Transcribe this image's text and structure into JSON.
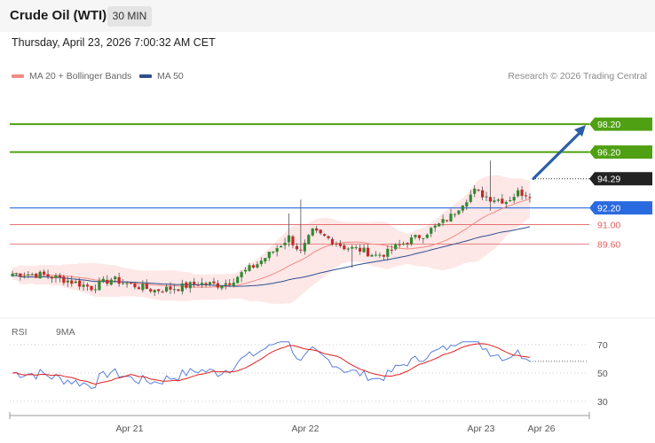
{
  "header": {
    "title": "Crude Oil (WTI)",
    "timeframe": "30 MIN",
    "timestamp": "Thursday, April 23, 2026 7:00:32 AM CET"
  },
  "legend": {
    "ma20_label": "MA 20 + Bollinger Bands",
    "ma50_label": "MA 50",
    "credit": "Research © 2026 Trading Central",
    "colors": {
      "ma20": "#f28b82",
      "ma50": "#2f4f8f",
      "band": "#fde3e3"
    }
  },
  "rsi_legend": {
    "rsi_label": "RSI",
    "ma9_label": "9MA",
    "colors": {
      "rsi": "#5b7fdc",
      "ma9": "#e02020"
    }
  },
  "chart_data": [
    {
      "type": "candlestick",
      "title": "",
      "ylim": [
        84.5,
        101.0
      ],
      "x_tick_labels": [
        "Apr 21",
        "Apr 22",
        "Apr 23",
        "Apr 26"
      ],
      "grid": false,
      "candles_count": 132,
      "levels": [
        {
          "label": "98.20",
          "value": 98.2,
          "kind": "resistance",
          "color": "#4fa012"
        },
        {
          "label": "96.20",
          "value": 96.2,
          "kind": "resistance",
          "color": "#4fa012"
        },
        {
          "label": "94.29",
          "value": 94.29,
          "kind": "last",
          "color": "#222222"
        },
        {
          "label": "92.20",
          "value": 92.2,
          "kind": "pivot",
          "color": "#2a6ae0"
        },
        {
          "label": "91.00",
          "value": 91.0,
          "kind": "support",
          "color": "#e06060"
        },
        {
          "label": "89.60",
          "value": 89.6,
          "kind": "support",
          "color": "#e06060"
        }
      ],
      "arrow": {
        "from": 94.3,
        "to": 98.2,
        "direction": "up"
      }
    },
    {
      "type": "line",
      "title": "",
      "ylim": [
        25,
        75
      ],
      "y_tick_labels": [
        "70",
        "50",
        "30"
      ],
      "y_ticks": [
        70,
        50,
        30
      ],
      "series_count": 2
    }
  ]
}
